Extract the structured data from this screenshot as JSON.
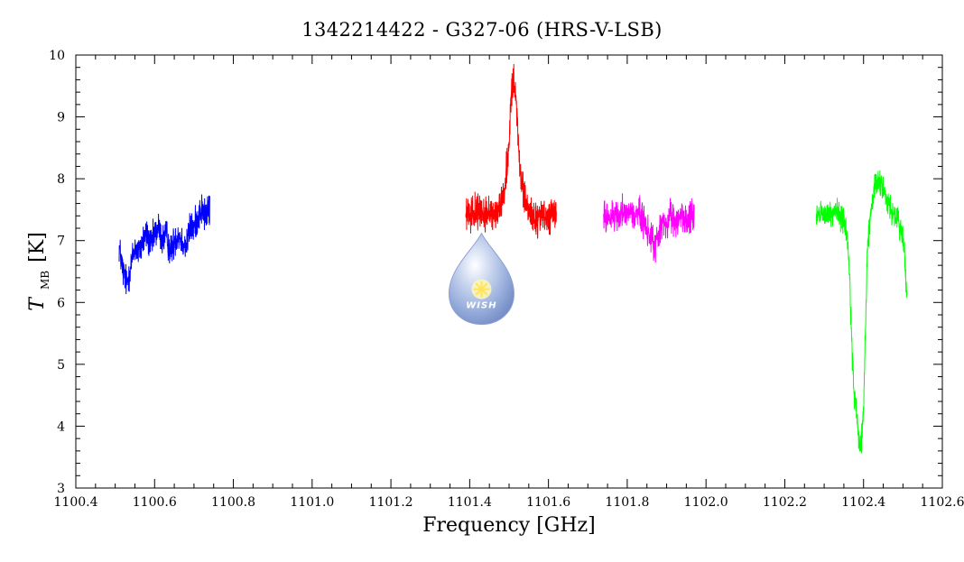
{
  "chart_data": {
    "type": "line",
    "title": "1342214422 - G327-06 (HRS-V-LSB)",
    "xlabel": "Frequency [GHz]",
    "ylabel_main": "T",
    "ylabel_sub": "MB",
    "ylabel_unit": "[K]",
    "xlim": [
      1100.4,
      1102.6
    ],
    "ylim": [
      3,
      10
    ],
    "xticks": [
      1100.4,
      1100.6,
      1100.8,
      1101.0,
      1101.2,
      1101.4,
      1101.6,
      1101.8,
      1102.0,
      1102.2,
      1102.4,
      1102.6
    ],
    "xtick_labels": [
      "1100.4",
      "1100.6",
      "1100.8",
      "1101.0",
      "1101.2",
      "1101.4",
      "1101.6",
      "1101.8",
      "1102.0",
      "1102.2",
      "1102.4",
      "1102.6"
    ],
    "yticks": [
      3,
      4,
      5,
      6,
      7,
      8,
      9,
      10
    ],
    "ytick_labels": [
      "3",
      "4",
      "5",
      "6",
      "7",
      "8",
      "9",
      "10"
    ],
    "grid": false,
    "series": [
      {
        "color": "#0000ff",
        "x": [
          1100.51,
          1100.52,
          1100.53,
          1100.54,
          1100.55,
          1100.56,
          1100.57,
          1100.58,
          1100.59,
          1100.6,
          1100.61,
          1100.62,
          1100.63,
          1100.64,
          1100.65,
          1100.66,
          1100.67,
          1100.68,
          1100.69,
          1100.7,
          1100.71,
          1100.72,
          1100.73,
          1100.74
        ],
        "y": [
          6.9,
          6.5,
          6.3,
          6.6,
          6.9,
          6.8,
          7.0,
          7.1,
          6.9,
          7.1,
          7.2,
          7.0,
          7.1,
          6.8,
          7.0,
          7.1,
          7.0,
          6.9,
          7.2,
          7.2,
          7.4,
          7.5,
          7.4,
          7.5
        ],
        "noise": 0.18
      },
      {
        "color": "#ff0000",
        "x": [
          1101.39,
          1101.4,
          1101.41,
          1101.42,
          1101.43,
          1101.44,
          1101.45,
          1101.46,
          1101.47,
          1101.48,
          1101.49,
          1101.5,
          1101.505,
          1101.51,
          1101.515,
          1101.52,
          1101.525,
          1101.53,
          1101.54,
          1101.55,
          1101.56,
          1101.57,
          1101.58,
          1101.59,
          1101.6,
          1101.61,
          1101.62
        ],
        "y": [
          7.4,
          7.4,
          7.5,
          7.4,
          7.5,
          7.4,
          7.45,
          7.4,
          7.5,
          7.6,
          7.9,
          8.6,
          9.3,
          9.55,
          9.4,
          9.0,
          8.5,
          8.0,
          7.6,
          7.5,
          7.4,
          7.3,
          7.4,
          7.4,
          7.35,
          7.4,
          7.4
        ],
        "noise": 0.18
      },
      {
        "color": "#ff00ff",
        "x": [
          1101.74,
          1101.75,
          1101.76,
          1101.77,
          1101.78,
          1101.79,
          1101.8,
          1101.81,
          1101.82,
          1101.83,
          1101.84,
          1101.85,
          1101.86,
          1101.87,
          1101.88,
          1101.89,
          1101.9,
          1101.91,
          1101.92,
          1101.93,
          1101.94,
          1101.95,
          1101.96,
          1101.97
        ],
        "y": [
          7.4,
          7.35,
          7.45,
          7.4,
          7.3,
          7.45,
          7.5,
          7.5,
          7.4,
          7.45,
          7.3,
          7.2,
          7.0,
          6.95,
          7.1,
          7.3,
          7.3,
          7.35,
          7.3,
          7.35,
          7.4,
          7.3,
          7.4,
          7.4
        ],
        "noise": 0.18
      },
      {
        "color": "#00ff00",
        "x": [
          1102.28,
          1102.29,
          1102.3,
          1102.31,
          1102.32,
          1102.33,
          1102.34,
          1102.35,
          1102.36,
          1102.365,
          1102.37,
          1102.375,
          1102.38,
          1102.385,
          1102.39,
          1102.395,
          1102.4,
          1102.405,
          1102.41,
          1102.42,
          1102.43,
          1102.44,
          1102.45,
          1102.46,
          1102.47,
          1102.48,
          1102.49,
          1102.5,
          1102.505,
          1102.51
        ],
        "y": [
          7.4,
          7.45,
          7.4,
          7.45,
          7.4,
          7.45,
          7.4,
          7.3,
          7.0,
          6.3,
          5.4,
          4.6,
          4.3,
          4.0,
          3.7,
          3.8,
          4.3,
          5.6,
          6.9,
          7.6,
          7.9,
          8.0,
          7.8,
          7.6,
          7.5,
          7.4,
          7.3,
          7.0,
          6.7,
          6.1
        ],
        "noise": 0.14
      }
    ],
    "logo": {
      "text": "WISH",
      "x": 1101.43,
      "y": 6.2
    }
  }
}
